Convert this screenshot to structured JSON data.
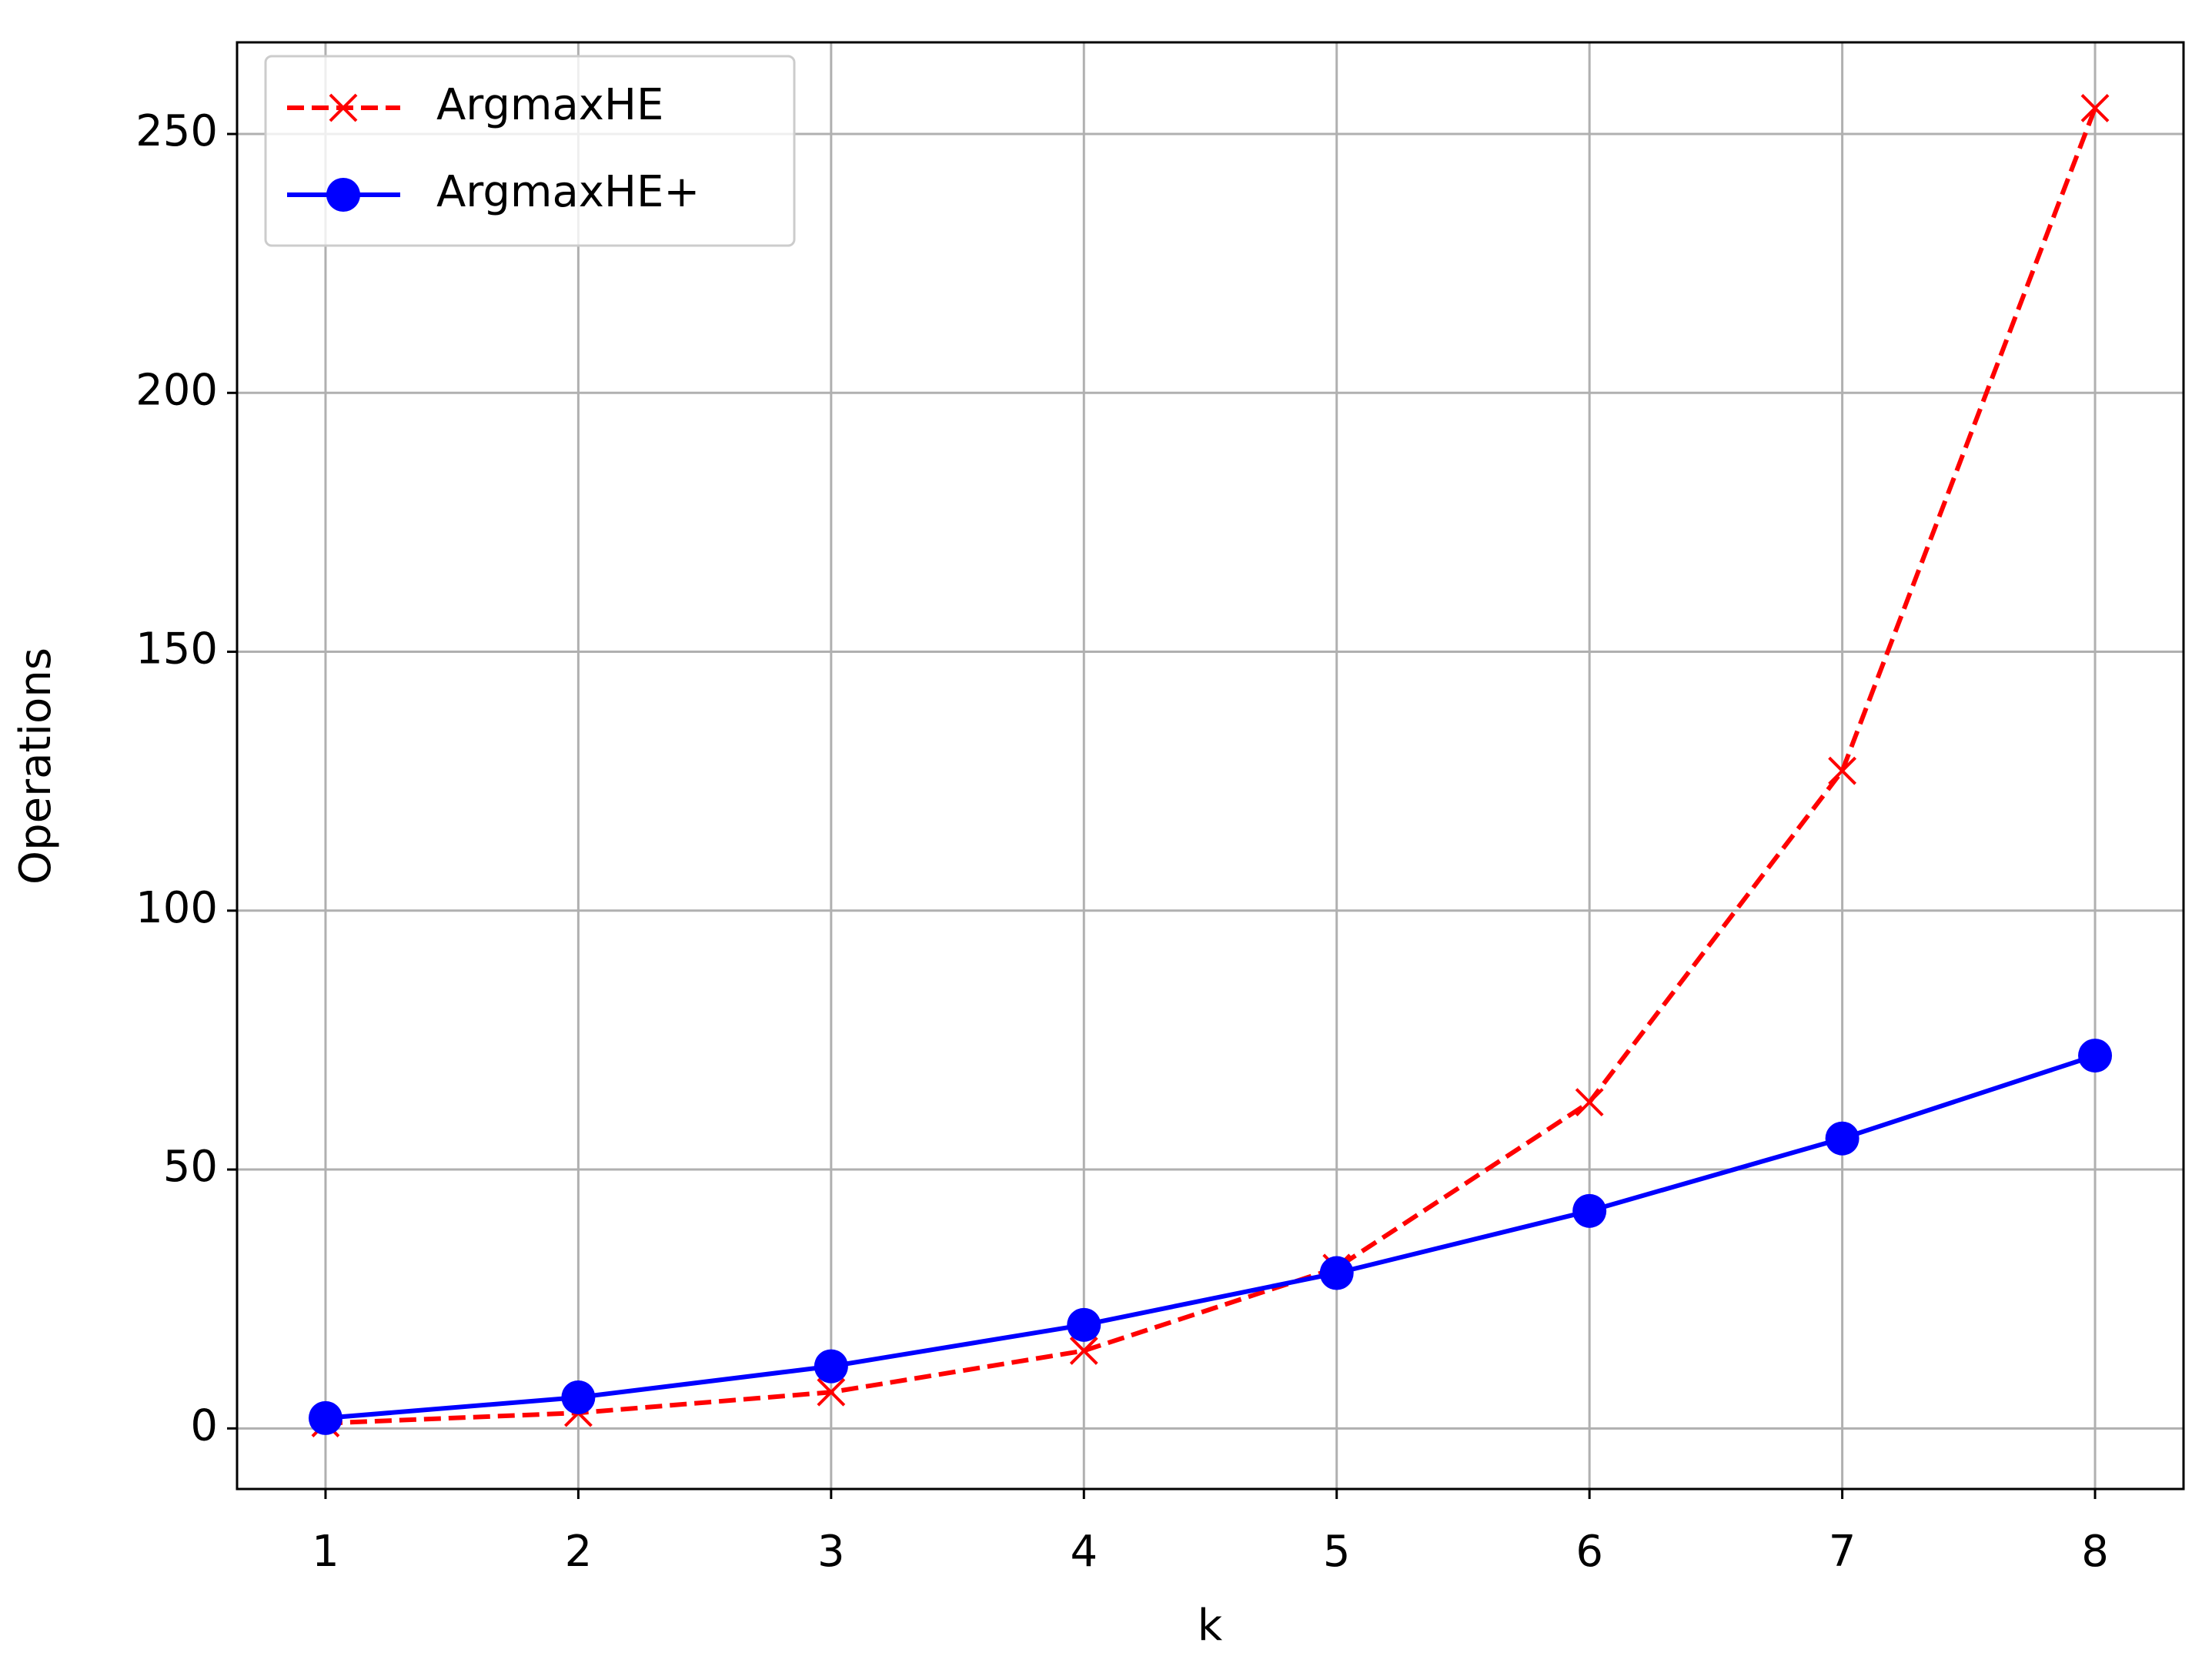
{
  "chart_data": {
    "type": "line",
    "xlabel": "k",
    "ylabel": "Operations",
    "x": [
      1,
      2,
      3,
      4,
      5,
      6,
      7,
      8
    ],
    "series": [
      {
        "name": "ArgmaxHE",
        "color": "#ff0000",
        "linestyle": "dashed",
        "marker": "x",
        "values": [
          1,
          3,
          7,
          15,
          31,
          63,
          127,
          255
        ]
      },
      {
        "name": "ArgmaxHE+",
        "color": "#0000ff",
        "linestyle": "solid",
        "marker": "circle",
        "values": [
          2,
          6,
          12,
          20,
          30,
          42,
          56,
          72
        ]
      }
    ],
    "xlim": [
      0.65,
      8.35
    ],
    "ylim": [
      -11.7,
      267.7
    ],
    "xticks": [
      1,
      2,
      3,
      4,
      5,
      6,
      7,
      8
    ],
    "yticks": [
      0,
      50,
      100,
      150,
      200,
      250
    ],
    "grid": true,
    "legend": "upper left"
  }
}
